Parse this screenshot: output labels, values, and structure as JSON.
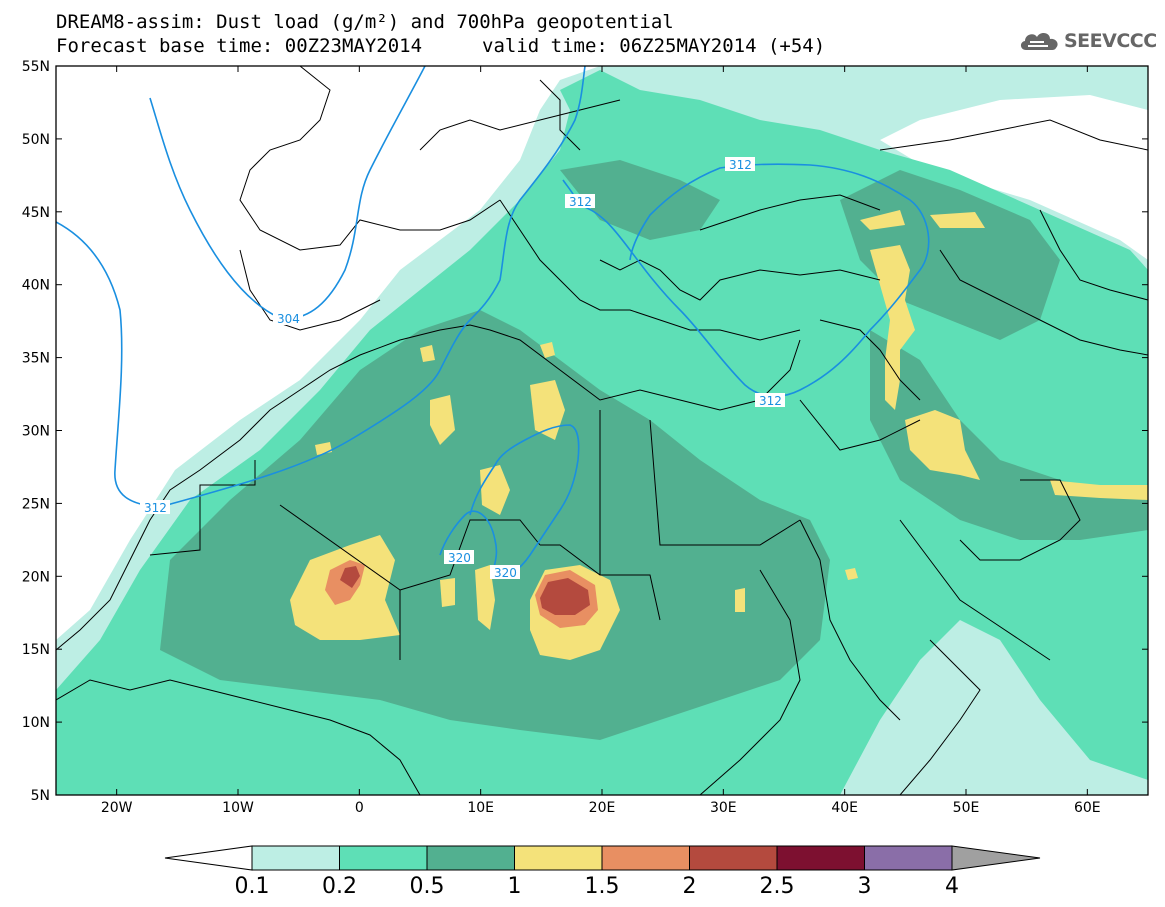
{
  "header": {
    "title_line1": "DREAM8-assim: Dust load (g/m²) and 700hPa geopotential",
    "base_time": "Forecast base time: 00Z23MAY2014",
    "valid_time": "valid time: 06Z25MAY2014 (+54)"
  },
  "logo": {
    "text": "SEEVCCC",
    "icon": "cloud-logo-icon"
  },
  "map": {
    "lon_range": [
      -25,
      65
    ],
    "lat_range": [
      5,
      55
    ],
    "lat_labels": [
      "55N",
      "50N",
      "45N",
      "40N",
      "35N",
      "30N",
      "25N",
      "20N",
      "15N",
      "10N",
      "5N"
    ],
    "lon_labels": [
      "20W",
      "10W",
      "0",
      "10E",
      "20E",
      "30E",
      "40E",
      "50E",
      "60E"
    ],
    "colors": {
      "sea": "#ffffff",
      "l01": "#bdeee4",
      "l02": "#5edfb6",
      "l05": "#52b090",
      "l1": "#f4e27a",
      "l15": "#e88f62",
      "l2": "#b44a3e",
      "l25": "#7d1030",
      "l3": "#8a6ea8",
      "l4": "#a0a0a0",
      "contour": "#1a8fe0",
      "border": "#000000"
    },
    "contour_labels": [
      "304",
      "312",
      "312",
      "312",
      "312",
      "320",
      "320"
    ]
  },
  "colorbar": {
    "levels": [
      "0.1",
      "0.2",
      "0.5",
      "1",
      "1.5",
      "2",
      "2.5",
      "3",
      "4"
    ],
    "colors": [
      "#bdeee4",
      "#5edfb6",
      "#52b090",
      "#f4e27a",
      "#e88f62",
      "#b44a3e",
      "#7d1030",
      "#8a6ea8"
    ]
  }
}
